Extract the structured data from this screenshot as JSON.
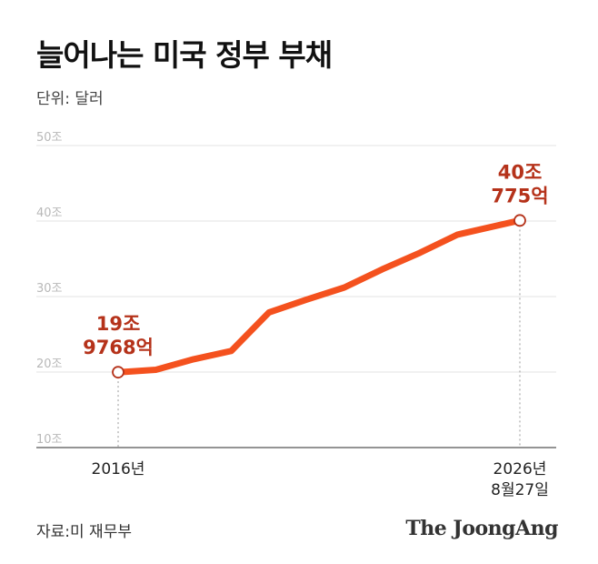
{
  "header": {
    "title": "늘어나는 미국 정부 부채",
    "unit": "단위: 달러"
  },
  "footer": {
    "source": "자료:미 재무부",
    "brand": "The JoongAng"
  },
  "colors": {
    "line": "#f4511e",
    "annotation": "#b5321a",
    "grid": "#e3e3e3",
    "tick_text": "#b8b8b8"
  },
  "chart_data": {
    "type": "line",
    "title": "늘어나는 미국 정부 부채",
    "ylabel": "",
    "xlabel": "",
    "unit": "단위: 달러",
    "ylim": [
      10,
      50
    ],
    "y_ticks": [
      10,
      20,
      30,
      40,
      50
    ],
    "y_tick_labels": [
      "10조",
      "20조",
      "30조",
      "40조",
      "50조"
    ],
    "grid": true,
    "x_tick_labels": [
      {
        "x": 2016,
        "lines": [
          "2016년"
        ]
      },
      {
        "x": 2026.65,
        "lines": [
          "2026년",
          "8월27일"
        ]
      }
    ],
    "series": [
      {
        "color": "#f4511e",
        "points": [
          {
            "x": 2016.0,
            "y": 19.98
          },
          {
            "x": 2017.0,
            "y": 20.3
          },
          {
            "x": 2018.0,
            "y": 21.7
          },
          {
            "x": 2019.0,
            "y": 22.8
          },
          {
            "x": 2020.0,
            "y": 27.9
          },
          {
            "x": 2021.0,
            "y": 29.6
          },
          {
            "x": 2022.0,
            "y": 31.2
          },
          {
            "x": 2023.0,
            "y": 33.6
          },
          {
            "x": 2024.0,
            "y": 35.8
          },
          {
            "x": 2025.0,
            "y": 38.2
          },
          {
            "x": 2026.65,
            "y": 40.08
          }
        ]
      }
    ],
    "annotations": [
      {
        "x": 2016.0,
        "y": 19.98,
        "lines": [
          "19조",
          "9768억"
        ]
      },
      {
        "x": 2026.65,
        "y": 40.08,
        "lines": [
          "40조",
          "775억"
        ]
      }
    ]
  }
}
